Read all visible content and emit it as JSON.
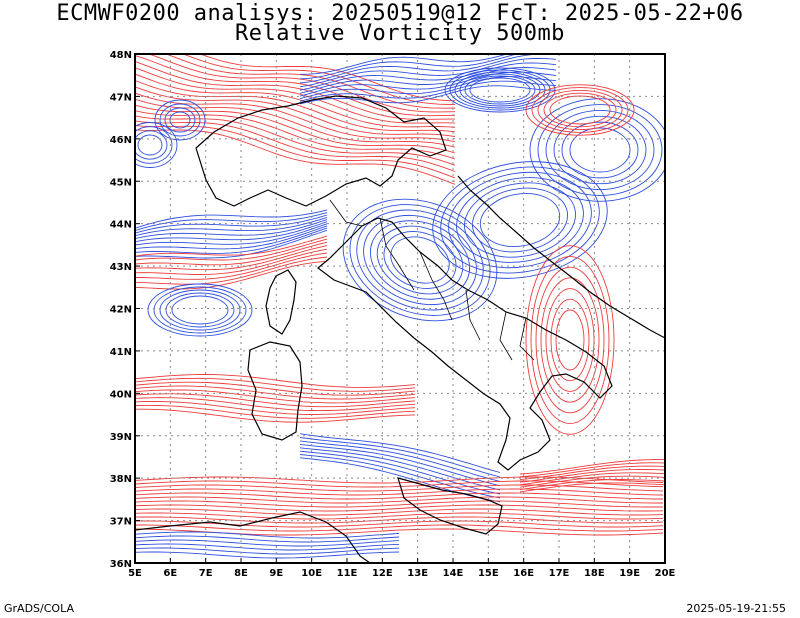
{
  "title_line1": "ECMWF0200 analisys: 20250519@12 FcT: 2025-05-22+06",
  "title_line2": "Relative Vorticity 500mb",
  "footer_left": "GrADS/COLA",
  "footer_right": "2025-05-19-21:55",
  "colors": {
    "positive": "#ef3b3b",
    "negative": "#2e4fe0",
    "coast": "#000000",
    "grid": "#8a8a8a"
  },
  "map": {
    "lon_range": [
      5,
      20
    ],
    "lat_range": [
      36,
      48
    ],
    "lon_labels": [
      "5E",
      "6E",
      "7E",
      "8E",
      "9E",
      "10E",
      "11E",
      "12E",
      "13E",
      "14E",
      "15E",
      "16E",
      "17E",
      "18E",
      "19E",
      "20E"
    ],
    "lat_labels": [
      "48N",
      "47N",
      "46N",
      "45N",
      "44N",
      "43N",
      "42N",
      "41N",
      "40N",
      "39N",
      "38N",
      "37N",
      "36N"
    ]
  }
}
